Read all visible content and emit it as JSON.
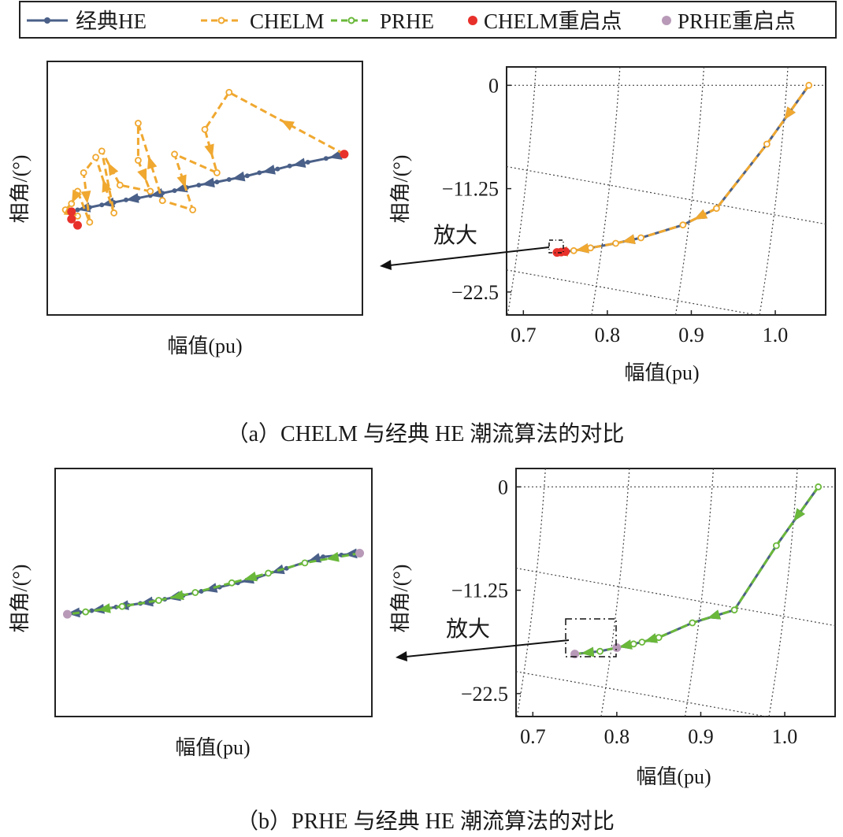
{
  "legend": {
    "entries": [
      {
        "label": "经典HE",
        "color": "#4a6088",
        "style": "solid",
        "marker": "dot"
      },
      {
        "label": "CHELM",
        "color": "#f0a830",
        "style": "dashed",
        "marker": "ring"
      },
      {
        "label": "PRHE",
        "color": "#6ab83a",
        "style": "dashed",
        "marker": "ring"
      },
      {
        "label": "CHELM重启点",
        "color": "#e8302a",
        "style": "none",
        "marker": "dot"
      },
      {
        "label": "PRHE重启点",
        "color": "#b89ab8",
        "style": "none",
        "marker": "dot"
      }
    ]
  },
  "captions": {
    "a": "（a）CHELM 与经典 HE 潮流算法的对比",
    "b": "（b）PRHE 与经典 HE 潮流算法的对比"
  },
  "zoom_label": "放大",
  "chart_data": [
    {
      "id": "a-left",
      "type": "line",
      "xlabel": "幅值(pu)",
      "ylabel": "相角/(°)",
      "axes_ticks": false,
      "xlim": [
        0.55,
        1.07
      ],
      "ylim": [
        -38,
        3
      ],
      "series": [
        {
          "name": "经典HE",
          "x": [
            1.04,
            1.01,
            0.98,
            0.95,
            0.93,
            0.9,
            0.88,
            0.85,
            0.83,
            0.8,
            0.78,
            0.76,
            0.74,
            0.72,
            0.7,
            0.68,
            0.66,
            0.64,
            0.62,
            0.6,
            0.59
          ],
          "y": [
            -12.0,
            -12.7,
            -13.3,
            -13.9,
            -14.4,
            -15.0,
            -15.5,
            -16.1,
            -16.5,
            -17.0,
            -17.4,
            -17.9,
            -18.3,
            -18.7,
            -19.1,
            -19.4,
            -19.8,
            -20.2,
            -20.6,
            -21.0,
            -21.3
          ]
        },
        {
          "name": "CHELM",
          "x": [
            1.04,
            0.85,
            0.81,
            0.83,
            0.76,
            0.79,
            0.74,
            0.7,
            0.7,
            0.72,
            0.67,
            0.64,
            0.66,
            0.63,
            0.61,
            0.62,
            0.6,
            0.59,
            0.58,
            0.6
          ],
          "y": [
            -12.0,
            -2.0,
            -8.0,
            -15.0,
            -12.0,
            -21.0,
            -19.5,
            -7.0,
            -13.0,
            -18.0,
            -17.0,
            -11.5,
            -21.5,
            -12.5,
            -15.0,
            -23.0,
            -18.0,
            -20.0,
            -21.0,
            -22.0
          ]
        },
        {
          "name": "CHELM重启点",
          "x": [
            1.04,
            0.59,
            0.59,
            0.6
          ],
          "y": [
            -12.0,
            -21.3,
            -22.5,
            -23.5
          ]
        }
      ]
    },
    {
      "id": "a-right",
      "type": "line",
      "xlabel": "幅值(pu)",
      "ylabel": "相角/(°)",
      "xticks": [
        "0.7",
        "0.8",
        "0.9",
        "1.0"
      ],
      "yticks": [
        "0",
        "-11.25",
        "-22.5"
      ],
      "xlim": [
        0.68,
        1.06
      ],
      "ylim": [
        -25,
        2
      ],
      "series": [
        {
          "name": "经典HE",
          "x": [
            1.04,
            0.99,
            0.93,
            0.89,
            0.84,
            0.81,
            0.78,
            0.76,
            0.75,
            0.74
          ],
          "y": [
            0.0,
            -6.4,
            -13.4,
            -15.2,
            -16.6,
            -17.2,
            -17.7,
            -18.0,
            -18.1,
            -18.2
          ]
        },
        {
          "name": "CHELM",
          "x": [
            1.04,
            0.99,
            0.93,
            0.89,
            0.84,
            0.81,
            0.78,
            0.76,
            0.75,
            0.74
          ],
          "y": [
            0.0,
            -6.4,
            -13.4,
            -15.2,
            -16.6,
            -17.2,
            -17.7,
            -18.0,
            -18.1,
            -18.2
          ]
        },
        {
          "name": "CHELM重启点",
          "x": [
            0.74,
            0.745,
            0.75
          ],
          "y": [
            -18.2,
            -18.15,
            -18.1
          ]
        }
      ]
    },
    {
      "id": "b-left",
      "type": "line",
      "xlabel": "幅值(pu)",
      "ylabel": "相角/(°)",
      "axes_ticks": false,
      "xlim": [
        0.55,
        1.07
      ],
      "ylim": [
        -38,
        3
      ],
      "series": [
        {
          "name": "经典HE",
          "x": [
            1.05,
            1.02,
            0.99,
            0.96,
            0.93,
            0.9,
            0.88,
            0.85,
            0.82,
            0.79,
            0.76,
            0.73,
            0.71,
            0.69,
            0.67,
            0.65,
            0.63,
            0.61,
            0.59,
            0.57
          ],
          "y": [
            -11.0,
            -11.3,
            -11.6,
            -12.5,
            -13.5,
            -14.4,
            -15.1,
            -15.9,
            -16.6,
            -17.3,
            -18.0,
            -18.6,
            -19.0,
            -19.3,
            -19.6,
            -19.9,
            -20.2,
            -20.5,
            -20.8,
            -21.0
          ]
        },
        {
          "name": "PRHE",
          "x": [
            1.05,
            0.96,
            0.9,
            0.84,
            0.78,
            0.72,
            0.66,
            0.6,
            0.57
          ],
          "y": [
            -11.0,
            -12.6,
            -14.3,
            -15.9,
            -17.5,
            -18.8,
            -19.8,
            -20.7,
            -21.1
          ]
        },
        {
          "name": "PRHE重启点",
          "x": [
            1.05,
            0.57
          ],
          "y": [
            -11.0,
            -21.1
          ]
        }
      ]
    },
    {
      "id": "b-right",
      "type": "line",
      "xlabel": "幅值(pu)",
      "ylabel": "相角/(°)",
      "xticks": [
        "0.7",
        "0.8",
        "0.9",
        "1.0"
      ],
      "yticks": [
        "0",
        "-11.25",
        "-22.5"
      ],
      "xlim": [
        0.68,
        1.06
      ],
      "ylim": [
        -25,
        2
      ],
      "series": [
        {
          "name": "经典HE",
          "x": [
            1.04,
            0.99,
            0.94,
            0.89,
            0.85,
            0.83,
            0.82,
            0.8,
            0.78,
            0.75
          ],
          "y": [
            0.0,
            -6.4,
            -13.4,
            -14.8,
            -16.4,
            -16.9,
            -17.1,
            -17.5,
            -17.9,
            -18.2
          ]
        },
        {
          "name": "PRHE",
          "x": [
            1.04,
            0.99,
            0.94,
            0.89,
            0.85,
            0.83,
            0.82,
            0.8,
            0.78,
            0.75
          ],
          "y": [
            0.0,
            -6.4,
            -13.4,
            -14.8,
            -16.4,
            -16.9,
            -17.1,
            -17.5,
            -17.9,
            -18.2
          ]
        },
        {
          "name": "PRHE重启点",
          "x": [
            0.75,
            0.8
          ],
          "y": [
            -18.2,
            -17.5
          ]
        }
      ]
    }
  ]
}
